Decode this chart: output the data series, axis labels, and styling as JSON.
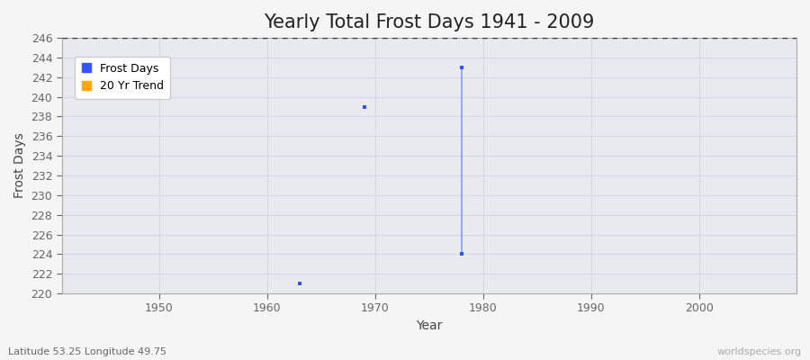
{
  "title": "Yearly Total Frost Days 1941 - 2009",
  "xlabel": "Year",
  "ylabel": "Frost Days",
  "subtitle": "Latitude 53.25 Longitude 49.75",
  "watermark": "worldspecies.org",
  "xlim": [
    1941,
    2009
  ],
  "ylim": [
    220,
    246
  ],
  "yticks": [
    220,
    222,
    224,
    226,
    228,
    230,
    232,
    234,
    236,
    238,
    240,
    242,
    244,
    246
  ],
  "xticks": [
    1950,
    1960,
    1970,
    1980,
    1990,
    2000
  ],
  "hline_y": 246,
  "hline_color": "#333333",
  "hline_style": "dashed",
  "fig_bg_color": "#f5f5f5",
  "plot_bg_color": "#e8eaf0",
  "grid_color": "#d0d4e0",
  "scatter_color": "#3355ff",
  "trend_color": "#8899ff",
  "legend_marker_frost": "#3355ff",
  "legend_marker_trend": "#ffaa00",
  "scatter_size": 8,
  "frost_days_scatter_x": [
    1963,
    1969
  ],
  "frost_days_scatter_y": [
    221,
    239
  ],
  "trend_line_x": [
    1978,
    1978
  ],
  "trend_line_y": [
    243,
    224
  ],
  "trend_top_x": 1978,
  "trend_top_y": 243,
  "trend_bot_x": 1978,
  "trend_bot_y": 224,
  "title_fontsize": 15,
  "axis_label_fontsize": 10,
  "tick_fontsize": 9,
  "subtitle_fontsize": 8,
  "watermark_fontsize": 8,
  "tick_color": "#666666",
  "label_color": "#444444",
  "spine_color": "#aaaaaa"
}
